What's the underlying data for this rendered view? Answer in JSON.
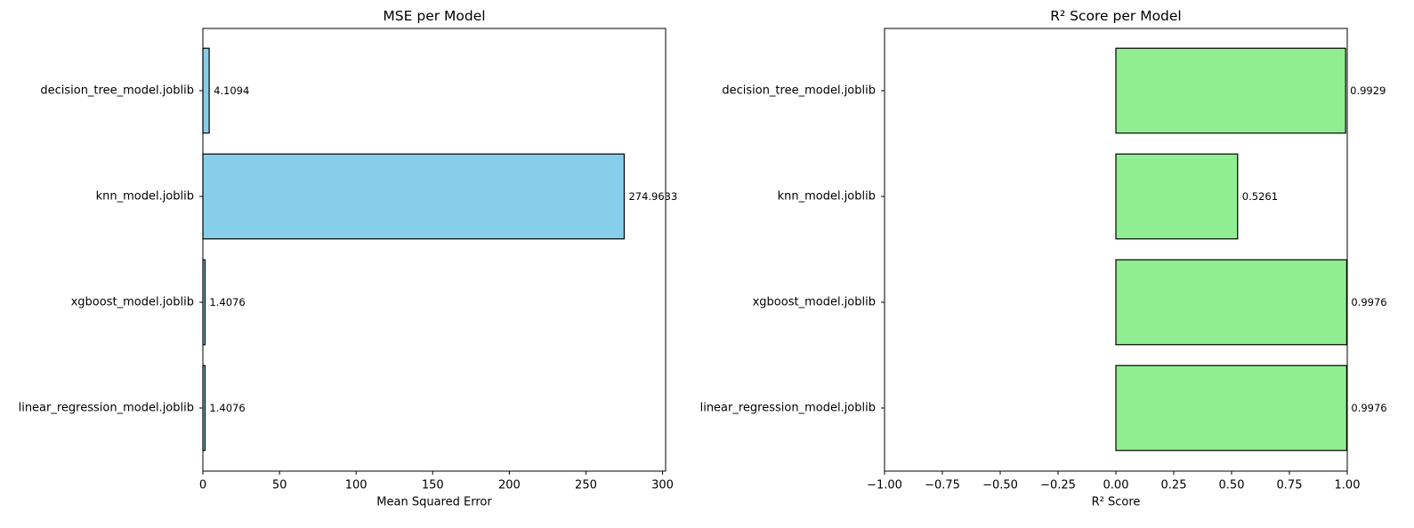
{
  "chart_data": [
    {
      "type": "bar",
      "orientation": "horizontal",
      "title": "MSE per Model",
      "xlabel": "Mean Squared Error",
      "ylabel": "",
      "categories": [
        "decision_tree_model.joblib",
        "knn_model.joblib",
        "xgboost_model.joblib",
        "linear_regression_model.joblib"
      ],
      "values": [
        4.1094,
        274.9633,
        1.4076,
        1.4076
      ],
      "value_labels": [
        "4.1094",
        "274.9633",
        "1.4076",
        "1.4076"
      ],
      "xlim": [
        0,
        302
      ],
      "xticks": [
        0,
        50,
        100,
        150,
        200,
        250,
        300
      ],
      "xtick_labels": [
        "0",
        "50",
        "100",
        "150",
        "200",
        "250",
        "300"
      ],
      "grid": false,
      "bar_color": "#87ceeb",
      "edge_color": "#000000"
    },
    {
      "type": "bar",
      "orientation": "horizontal",
      "title": "R² Score per Model",
      "xlabel": "R² Score",
      "ylabel": "",
      "categories": [
        "decision_tree_model.joblib",
        "knn_model.joblib",
        "xgboost_model.joblib",
        "linear_regression_model.joblib"
      ],
      "values": [
        0.9929,
        0.5261,
        0.9976,
        0.9976
      ],
      "value_labels": [
        "0.9929",
        "0.5261",
        "0.9976",
        "0.9976"
      ],
      "xlim": [
        -1,
        1
      ],
      "xticks": [
        -1,
        -0.75,
        -0.5,
        -0.25,
        0,
        0.25,
        0.5,
        0.75,
        1
      ],
      "xtick_labels": [
        "−1.00",
        "−0.75",
        "−0.50",
        "−0.25",
        "0.00",
        "0.25",
        "0.50",
        "0.75",
        "1.00"
      ],
      "grid": false,
      "bar_color": "#90ee90",
      "edge_color": "#000000"
    }
  ]
}
